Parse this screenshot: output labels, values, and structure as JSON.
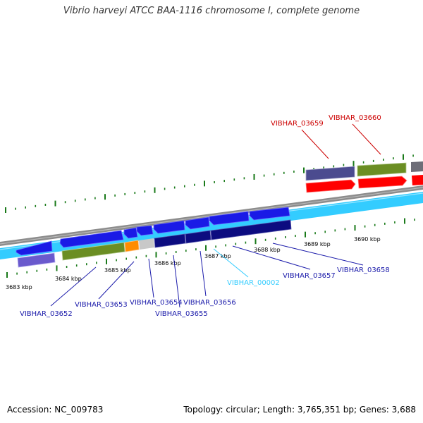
{
  "title": "Vibrio harveyi ATCC BAA-1116 chromosome I, complete genome",
  "accession_text": "Accession: NC_009783",
  "summary_text": "Topology: circular; Length: 3,765,351 bp; Genes: 3,688",
  "colors": {
    "backbone": "#8c8c8c",
    "strand_light": "#33ccff",
    "forward_gene": "#ff0000",
    "reverse_gene": "#1a1ae6",
    "dark_gene": "#0c0c80",
    "olive_gene": "#6b8e23",
    "slate_gene": "#4b4b8f",
    "periwinkle_gene": "#6a5acd",
    "orange_gene": "#ff8c00",
    "grey_gene": "#c8c8c8",
    "tick": "#1a7a1a",
    "reverse_label": "#1a1aaa",
    "forward_label": "#cc0000",
    "rna_label": "#33ccff"
  },
  "scale": {
    "unit": "kbp",
    "labels": [
      "3683 kbp",
      "3684 kbp",
      "3685 kbp",
      "3686 kbp",
      "3687 kbp",
      "3688 kbp",
      "3689 kbp",
      "3690 kbp"
    ]
  },
  "loci": [
    {
      "name": "VIBHAR_03652",
      "strand": "reverse"
    },
    {
      "name": "VIBHAR_03653",
      "strand": "reverse"
    },
    {
      "name": "VIBHAR_03654",
      "strand": "reverse"
    },
    {
      "name": "VIBHAR_03655",
      "strand": "reverse"
    },
    {
      "name": "VIBHAR_03656",
      "strand": "reverse"
    },
    {
      "name": "VIBHAR_00002",
      "strand": "rna"
    },
    {
      "name": "VIBHAR_03657",
      "strand": "reverse"
    },
    {
      "name": "VIBHAR_03658",
      "strand": "reverse"
    },
    {
      "name": "VIBHAR_03659",
      "strand": "forward"
    },
    {
      "name": "VIBHAR_03660",
      "strand": "forward"
    }
  ]
}
